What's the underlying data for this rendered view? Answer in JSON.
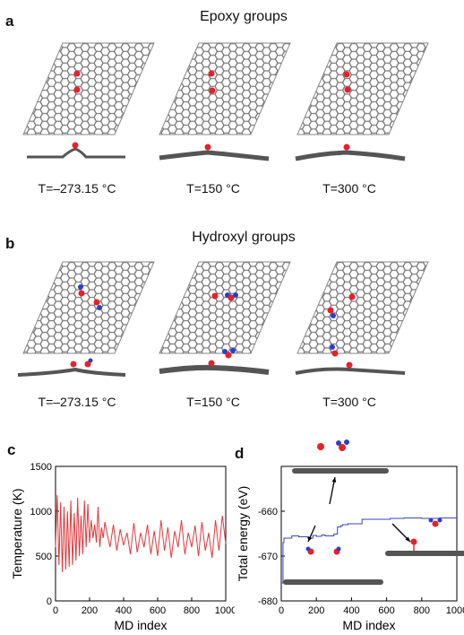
{
  "panels": {
    "a": {
      "letter": "a",
      "title": "Epoxy groups",
      "temps": [
        "T=–273.15 °C",
        "T=150 °C",
        "T=300 °C"
      ]
    },
    "b": {
      "letter": "b",
      "title": "Hydroxyl groups",
      "temps": [
        "T=–273.15 °C",
        "T=150 °C",
        "T=300 °C"
      ]
    },
    "c": {
      "letter": "c"
    },
    "d": {
      "letter": "d"
    }
  },
  "colors": {
    "oxygen": "#e8202a",
    "hydrogen": "#2d3fc4",
    "lattice": "#777777",
    "temperature_line": "#e0383c",
    "energy_line": "#3a46b8"
  },
  "chart_data": [
    {
      "type": "line",
      "panel": "c",
      "xlabel": "MD index",
      "ylabel": "Temperature (K)",
      "xlim": [
        0,
        1000
      ],
      "ylim": [
        0,
        1500
      ],
      "xticks": [
        "0",
        "200",
        "400",
        "600",
        "800",
        "1000"
      ],
      "yticks": [
        "0",
        "500",
        "1000",
        "1500"
      ],
      "grid": false,
      "series": [
        {
          "x": [
            0,
            10,
            20,
            30,
            40,
            50,
            60,
            70,
            80,
            90,
            100,
            110,
            120,
            130,
            140,
            150,
            160,
            170,
            180,
            190,
            200,
            210,
            220,
            230,
            240,
            250,
            260,
            270,
            280,
            290,
            300,
            320,
            340,
            360,
            380,
            400,
            420,
            440,
            460,
            480,
            500,
            520,
            540,
            560,
            580,
            600,
            620,
            640,
            660,
            680,
            700,
            720,
            740,
            760,
            780,
            800,
            820,
            840,
            860,
            880,
            900,
            920,
            940,
            960,
            980,
            1000
          ],
          "y": [
            600,
            1180,
            400,
            1100,
            320,
            1050,
            350,
            1000,
            380,
            1120,
            400,
            980,
            450,
            1150,
            500,
            950,
            520,
            1120,
            600,
            1080,
            650,
            900,
            700,
            850,
            650,
            1050,
            600,
            820,
            700,
            880,
            780,
            600,
            850,
            560,
            800,
            620,
            760,
            520,
            870,
            540,
            760,
            600,
            850,
            520,
            780,
            500,
            900,
            560,
            820,
            480,
            780,
            600,
            900,
            520,
            760,
            600,
            840,
            500,
            880,
            560,
            760,
            480,
            900,
            560,
            950,
            640
          ]
        }
      ]
    },
    {
      "type": "line",
      "panel": "d",
      "xlabel": "MD index",
      "ylabel": "Total energy (eV)",
      "xlim": [
        0,
        1000
      ],
      "ylim": [
        -680,
        -650
      ],
      "xticks": [
        "0",
        "200",
        "400",
        "600",
        "800",
        "1000"
      ],
      "yticks": [
        "-680",
        "-670",
        "-660"
      ],
      "grid": false,
      "series": [
        {
          "x": [
            0,
            10,
            15,
            40,
            60,
            100,
            150,
            180,
            200,
            230,
            250,
            300,
            320,
            340,
            350,
            360,
            380,
            400,
            450,
            460,
            600,
            620,
            700,
            800,
            900,
            1000
          ],
          "y": [
            -676,
            -667,
            -666,
            -666,
            -665.5,
            -665.7,
            -666,
            -665.4,
            -665.6,
            -665.3,
            -665.5,
            -665.1,
            -663.5,
            -663.2,
            -663,
            -663,
            -662.8,
            -662.8,
            -662.8,
            -661.8,
            -661.8,
            -661.6,
            -661.5,
            -661.6,
            -661.5,
            -661.5
          ]
        }
      ]
    }
  ]
}
